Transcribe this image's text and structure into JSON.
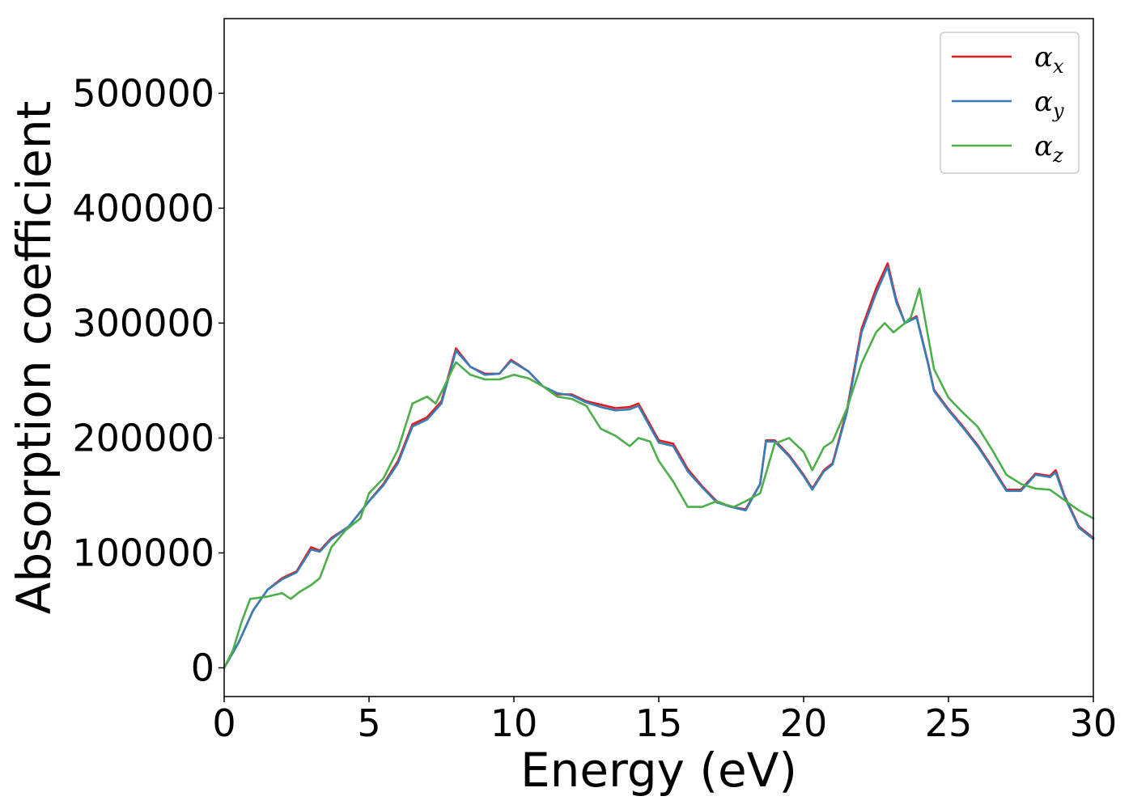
{
  "chart_data": {
    "type": "line",
    "title": "",
    "xlabel": "Energy (eV)",
    "ylabel": "Absorption coefficient",
    "xlim": [
      0,
      30
    ],
    "ylim": [
      -25000,
      565000
    ],
    "xticks": [
      0,
      5,
      10,
      15,
      20,
      25,
      30
    ],
    "yticks": [
      0,
      100000,
      200000,
      300000,
      400000,
      500000
    ],
    "grid": false,
    "legend_position": "top-right",
    "series": [
      {
        "name": "α",
        "subscript": "x",
        "color": "#e41a1c",
        "x": [
          0,
          0.5,
          1,
          1.5,
          2,
          2.5,
          3,
          3.3,
          3.7,
          4.3,
          5,
          5.5,
          6,
          6.5,
          7,
          7.5,
          8,
          8.5,
          9,
          9.5,
          9.9,
          10.5,
          11,
          11.5,
          12,
          12.5,
          13,
          13.5,
          14,
          14.3,
          15,
          15.5,
          16,
          16.5,
          17,
          17.5,
          18,
          18.5,
          18.7,
          19,
          19.5,
          20,
          20.3,
          20.7,
          21,
          21.5,
          22,
          22.5,
          22.9,
          23.2,
          23.5,
          23.9,
          24.3,
          24.5,
          25,
          25.5,
          26,
          26.5,
          27,
          27.5,
          28,
          28.5,
          28.7,
          29,
          29.5,
          30
        ],
        "y": [
          0,
          22000,
          50000,
          68000,
          78000,
          84000,
          105000,
          102000,
          113000,
          123000,
          145000,
          160000,
          180000,
          212000,
          218000,
          232000,
          278000,
          262000,
          256000,
          256000,
          268000,
          258000,
          245000,
          238000,
          238000,
          232000,
          229000,
          226000,
          227000,
          230000,
          198000,
          195000,
          173000,
          158000,
          145000,
          140000,
          138000,
          160000,
          198000,
          198000,
          185000,
          168000,
          156000,
          172000,
          178000,
          225000,
          295000,
          330000,
          352000,
          320000,
          300000,
          306000,
          265000,
          242000,
          225000,
          210000,
          194000,
          175000,
          155000,
          155000,
          169000,
          167000,
          172000,
          150000,
          123000,
          113000
        ]
      },
      {
        "name": "α",
        "subscript": "y",
        "color": "#377eb8",
        "x": [
          0,
          0.5,
          1,
          1.5,
          2,
          2.5,
          3,
          3.3,
          3.7,
          4.3,
          5,
          5.5,
          6,
          6.5,
          7,
          7.5,
          8,
          8.5,
          9,
          9.5,
          9.9,
          10.5,
          11,
          11.5,
          12,
          12.5,
          13,
          13.5,
          14,
          14.3,
          15,
          15.5,
          16,
          16.5,
          17,
          17.5,
          18,
          18.5,
          18.7,
          19,
          19.5,
          20,
          20.3,
          20.7,
          21,
          21.5,
          22,
          22.5,
          22.9,
          23.2,
          23.5,
          23.9,
          24.3,
          24.5,
          25,
          25.5,
          26,
          26.5,
          27,
          27.5,
          28,
          28.5,
          28.7,
          29,
          29.5,
          30
        ],
        "y": [
          0,
          22000,
          50000,
          68000,
          77000,
          83000,
          103000,
          101000,
          112000,
          123000,
          145000,
          159000,
          178000,
          210000,
          216000,
          230000,
          276000,
          262000,
          255000,
          256000,
          267000,
          258000,
          245000,
          239000,
          237000,
          231000,
          227000,
          224000,
          225000,
          228000,
          196000,
          193000,
          171000,
          157000,
          144000,
          140000,
          137000,
          160000,
          197000,
          197000,
          184000,
          167000,
          155000,
          171000,
          177000,
          223000,
          292000,
          326000,
          349000,
          318000,
          300000,
          305000,
          264000,
          241000,
          224000,
          209000,
          193000,
          174000,
          154000,
          154000,
          168000,
          166000,
          170000,
          149000,
          122000,
          112000
        ]
      },
      {
        "name": "α",
        "subscript": "z",
        "color": "#4daf4a",
        "x": [
          0,
          0.3,
          0.6,
          0.9,
          1.5,
          2,
          2.3,
          2.6,
          3,
          3.3,
          3.7,
          4.2,
          4.7,
          5,
          5.5,
          6,
          6.5,
          7,
          7.3,
          7.6,
          8,
          8.5,
          9,
          9.5,
          10,
          10.5,
          11,
          11.5,
          12,
          12.5,
          13,
          13.5,
          14,
          14.3,
          14.7,
          15,
          15.5,
          16,
          16.5,
          17,
          17.3,
          17.6,
          18,
          18.5,
          19,
          19.5,
          20,
          20.3,
          20.7,
          21,
          21.5,
          22,
          22.5,
          22.8,
          23.1,
          23.5,
          23.7,
          24,
          24.5,
          25,
          25.5,
          26,
          26.5,
          27,
          27.5,
          28,
          28.5,
          29,
          29.5,
          30
        ],
        "y": [
          0,
          15000,
          40000,
          60000,
          62000,
          65000,
          60000,
          66000,
          72000,
          78000,
          105000,
          120000,
          130000,
          152000,
          165000,
          190000,
          230000,
          236000,
          230000,
          245000,
          266000,
          255000,
          251000,
          251000,
          255000,
          252000,
          245000,
          236000,
          234000,
          228000,
          208000,
          202000,
          193000,
          200000,
          197000,
          180000,
          162000,
          140000,
          140000,
          145000,
          142000,
          140000,
          145000,
          152000,
          195000,
          200000,
          188000,
          172000,
          192000,
          197000,
          226000,
          265000,
          292000,
          300000,
          292000,
          300000,
          305000,
          330000,
          260000,
          235000,
          222000,
          210000,
          190000,
          168000,
          160000,
          156000,
          155000,
          146000,
          137000,
          130000
        ]
      }
    ]
  }
}
